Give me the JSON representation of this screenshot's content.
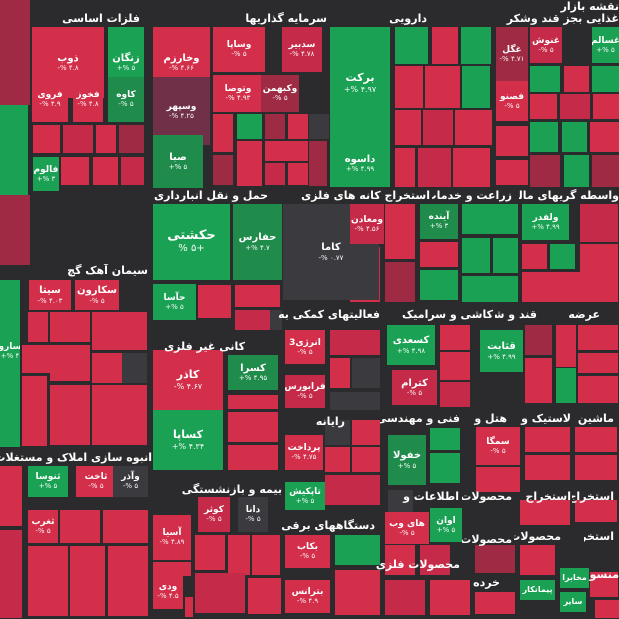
{
  "colors": {
    "background": "#2b2b2d",
    "g": "#1aa153",
    "gd": "#1f8c4b",
    "r": "#d32f4b",
    "rd": "#9e2a44",
    "rp": "#c52a48",
    "dk": "#3a3a3f",
    "m": "#6f3048"
  },
  "sectors": [
    {
      "label": "نقشه بازار"
    },
    {
      "label": "فلزات اساسی"
    },
    {
      "label": "سرمایه گذاریها"
    },
    {
      "label": "دارویی"
    },
    {
      "label": "غذایی بجز قند وشکر"
    },
    {
      "label": "حمل و نقل انبارداری و"
    },
    {
      "label": "استخراج کانه های فلزی"
    },
    {
      "label": "زراعت و خدمات"
    },
    {
      "label": "واسطه گریهای مالی و"
    },
    {
      "label": "سیمان آهک گچ"
    },
    {
      "label": "فعالیتهای کمکی به"
    },
    {
      "label": "کاشی و سرامیک"
    },
    {
      "label": "قند و شکر"
    },
    {
      "label": "عرضه"
    },
    {
      "label": "کانی غیر فلزی"
    },
    {
      "label": "رایانه"
    },
    {
      "label": "فنی و مهندسی"
    },
    {
      "label": "هتل و"
    },
    {
      "label": "لاستیک و"
    },
    {
      "label": "ماشین"
    },
    {
      "label": "انبوه سازی املاک و مستغلات"
    },
    {
      "label": "بیمه و بازنشستگی"
    },
    {
      "label": "اطلاعات و"
    },
    {
      "label": "محصولات"
    },
    {
      "label": "استخراج"
    },
    {
      "label": "استخراج"
    },
    {
      "label": "دستگاههای برقی"
    },
    {
      "label": "محصولات"
    },
    {
      "label": "محصولات فلزی"
    },
    {
      "label": "محصولات"
    },
    {
      "label": "استخر"
    },
    {
      "label": "خرده"
    },
    {
      "label": "منسو"
    }
  ],
  "tiles": [
    {
      "name": "ذوب",
      "change": "۴.۸ %-"
    },
    {
      "name": "زنگان",
      "change": "۵ %+"
    },
    {
      "name": "فروی",
      "change": "۴.۹ %-"
    },
    {
      "name": "فخوز",
      "change": "۴.۸ %-"
    },
    {
      "name": "کاوه",
      "change": "۵ %-"
    },
    {
      "name": "فالوم",
      "change": "۳ %+"
    },
    {
      "name": "وخارزم",
      "change": "۴.۶۶ %-"
    },
    {
      "name": "وساپا",
      "change": "۵ %-"
    },
    {
      "name": "سدبیر",
      "change": "۴.۷۸ %-"
    },
    {
      "name": "وسپهر",
      "change": "۴.۲۵ %-"
    },
    {
      "name": "وتوصا",
      "change": "۴.۹۳ %-"
    },
    {
      "name": "وکبهمن",
      "change": "۵ %-"
    },
    {
      "name": "صبا",
      "change": "۵ %+"
    },
    {
      "name": "برکت",
      "change": "۴.۹۷ %+"
    },
    {
      "name": "داسوه",
      "change": "۴.۹۹ %+"
    },
    {
      "name": "غنوش",
      "change": "۵ %-"
    },
    {
      "name": "غسالم",
      "change": "۵ %+"
    },
    {
      "name": "غگل",
      "change": "۴.۷۱ %-"
    },
    {
      "name": "فصنو",
      "change": "۵ %-"
    },
    {
      "name": "حکشتی",
      "change": "+۵ %"
    },
    {
      "name": "حفارس",
      "change": "۴.۷ %+"
    },
    {
      "name": "حآسا",
      "change": "۵ %+"
    },
    {
      "name": "کاما",
      "change": "۰.۷۷ %-"
    },
    {
      "name": "ومعادن",
      "change": "۴.۵۶ %-"
    },
    {
      "name": "آینده",
      "change": "۳ %+"
    },
    {
      "name": "ولفدر",
      "change": "۴.۹۹ %+"
    },
    {
      "name": "سیتا",
      "change": "۴.۰۳ %-"
    },
    {
      "name": "سکارون",
      "change": "۵ %-"
    },
    {
      "name": "سارو",
      "change": "۴ %+"
    },
    {
      "name": "انرژی3",
      "change": "۵ %-"
    },
    {
      "name": "فرابورس",
      "change": "۵ %-"
    },
    {
      "name": "کسعدی",
      "change": "۴.۹۸ %+"
    },
    {
      "name": "کترام",
      "change": "۵ %-"
    },
    {
      "name": "قثابت",
      "change": "۴.۹۹ %+"
    },
    {
      "name": "کاذر",
      "change": "۴.۶۷ %-"
    },
    {
      "name": "کسرا",
      "change": "۴.۹۵ %+"
    },
    {
      "name": "کساپا",
      "change": "۴.۳۴ %+"
    },
    {
      "name": "پرداخت",
      "change": "۴.۷۵ %-"
    },
    {
      "name": "خفولا",
      "change": "۵ %+"
    },
    {
      "name": "سمگا",
      "change": "۵ %-"
    },
    {
      "name": "ثنوسا",
      "change": "۵ %+"
    },
    {
      "name": "ثاخت",
      "change": "۵ %-"
    },
    {
      "name": "وآذر",
      "change": "۵ %-"
    },
    {
      "name": "ثغرب",
      "change": "۵ %-"
    },
    {
      "name": "آسیا",
      "change": "۴.۸۹ %-"
    },
    {
      "name": "کوثر",
      "change": "۵ %-"
    },
    {
      "name": "دانا",
      "change": "۵ %-"
    },
    {
      "name": "ودی",
      "change": "۴.۵ %-"
    },
    {
      "name": "تاپکیش",
      "change": "۵ %+"
    },
    {
      "name": "های وب",
      "change": "۵ %-"
    },
    {
      "name": "اوان",
      "change": "۵ %+"
    },
    {
      "name": "بکاب",
      "change": "۵ %-"
    },
    {
      "name": "بترانس",
      "change": "۴.۹ %-"
    },
    {
      "name": "پیمانکار"
    },
    {
      "name": "مخابرا"
    },
    {
      "name": "سایر"
    }
  ]
}
